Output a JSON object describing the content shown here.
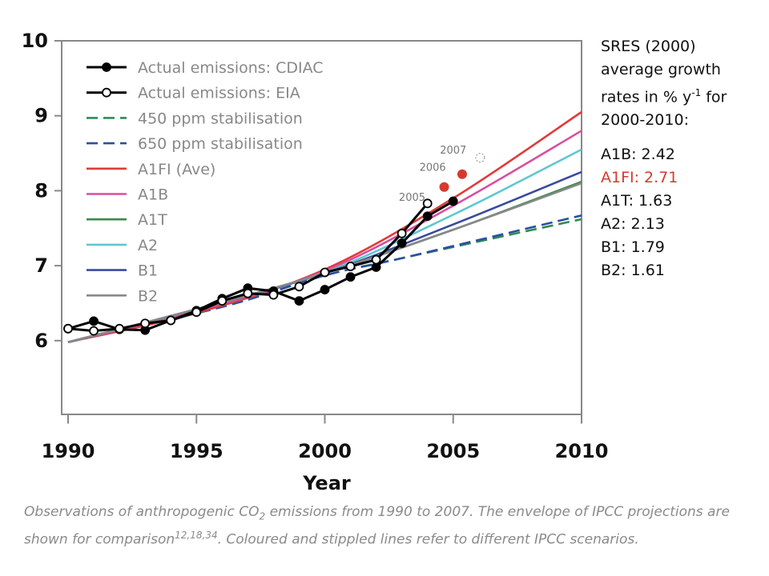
{
  "chart_data": {
    "type": "line",
    "xlabel": "Year",
    "ylabel": "",
    "xlim": [
      1990,
      2010
    ],
    "ylim": [
      5,
      10
    ],
    "x_ticks": [
      1990,
      1995,
      2000,
      2005,
      2010
    ],
    "y_ticks": [
      6,
      7,
      8,
      9,
      10
    ],
    "legend_position": "top-left",
    "series": [
      {
        "name": "Actual emissions: CDIAC",
        "color": "#000000",
        "style": "solid-filled-markers",
        "x": [
          1990,
          1991,
          1992,
          1993,
          1994,
          1995,
          1996,
          1997,
          1998,
          1999,
          2000,
          2001,
          2002,
          2003,
          2004,
          2005
        ],
        "y": [
          6.16,
          6.26,
          6.15,
          6.14,
          6.27,
          6.4,
          6.56,
          6.7,
          6.66,
          6.53,
          6.68,
          6.85,
          6.98,
          7.3,
          7.66,
          7.86
        ]
      },
      {
        "name": "Actual emissions: EIA",
        "color": "#000000",
        "style": "solid-open-markers",
        "x": [
          1990,
          1991,
          1992,
          1993,
          1994,
          1995,
          1996,
          1997,
          1998,
          1999,
          2000,
          2001,
          2002,
          2003,
          2004
        ],
        "y": [
          6.16,
          6.13,
          6.16,
          6.23,
          6.27,
          6.38,
          6.53,
          6.63,
          6.61,
          6.72,
          6.91,
          6.99,
          7.08,
          7.43,
          7.83
        ]
      },
      {
        "name": "450 ppm stabilisation",
        "color": "#2e8b57",
        "style": "dashed",
        "x": [
          1990,
          1996,
          2000,
          2003,
          2010
        ],
        "y": [
          5.98,
          6.45,
          6.87,
          7.1,
          7.62
        ]
      },
      {
        "name": "650 ppm stabilisation",
        "color": "#2a4fa0",
        "style": "dashed",
        "x": [
          1990,
          1996,
          2000,
          2003,
          2010
        ],
        "y": [
          5.98,
          6.45,
          6.87,
          7.1,
          7.67
        ]
      },
      {
        "name": "A1FI (Ave)",
        "color": "#e03a3a",
        "style": "solid",
        "x": [
          1990,
          1995,
          2000,
          2005,
          2010
        ],
        "y": [
          5.98,
          6.37,
          6.95,
          7.9,
          9.05
        ]
      },
      {
        "name": "A1B",
        "color": "#d84f9e",
        "style": "solid",
        "x": [
          1990,
          1995,
          2000,
          2005,
          2010
        ],
        "y": [
          5.98,
          6.4,
          6.93,
          7.8,
          8.8
        ]
      },
      {
        "name": "A1T",
        "color": "#3a8a4a",
        "style": "solid",
        "x": [
          1990,
          1995,
          2000,
          2005,
          2010
        ],
        "y": [
          5.98,
          6.42,
          6.9,
          7.48,
          8.12
        ]
      },
      {
        "name": "A2",
        "color": "#5cc8d0",
        "style": "solid",
        "x": [
          1990,
          1995,
          2000,
          2005,
          2010
        ],
        "y": [
          5.98,
          6.42,
          6.91,
          7.68,
          8.55
        ]
      },
      {
        "name": "B1",
        "color": "#3a4a9e",
        "style": "solid",
        "x": [
          1990,
          1995,
          2000,
          2005,
          2010
        ],
        "y": [
          5.98,
          6.42,
          6.9,
          7.55,
          8.25
        ]
      },
      {
        "name": "B2",
        "color": "#888888",
        "style": "solid",
        "x": [
          1990,
          1995,
          2000,
          2005,
          2010
        ],
        "y": [
          5.98,
          6.42,
          6.9,
          7.48,
          8.1
        ]
      }
    ],
    "annotations": [
      {
        "label": "2005",
        "x": 2004.0,
        "y": 7.83,
        "marker": "none",
        "color": "#000000"
      },
      {
        "label": "2006",
        "x": 2004.65,
        "y": 8.05,
        "marker": "filled",
        "color": "#d63a2e"
      },
      {
        "label": "2007",
        "x": 2005.35,
        "y": 8.22,
        "marker": "filled",
        "color": "#d63a2e"
      },
      {
        "label": "",
        "x": 2006.05,
        "y": 8.44,
        "marker": "dotted-open",
        "color": "#999999"
      }
    ]
  },
  "side_panel": {
    "heading_line1": "SRES (2000)",
    "heading_line2": "average growth",
    "heading_line3_pre": "rates in % y",
    "heading_line3_sup": "-1",
    "heading_line3_post": " for",
    "heading_line4": "2000-2010:",
    "rates": [
      {
        "label": "A1B: 2.42",
        "highlight": false
      },
      {
        "label": "A1FI: 2.71",
        "highlight": true
      },
      {
        "label": "A1T: 1.63",
        "highlight": false
      },
      {
        "label": "A2: 2.13",
        "highlight": false
      },
      {
        "label": "B1: 1.79",
        "highlight": false
      },
      {
        "label": "B2: 1.61",
        "highlight": false
      }
    ],
    "highlight_color": "#d63a2e"
  },
  "caption": {
    "part1": "Observations of anthropogenic CO",
    "part1_sub": "2",
    "part2": " emissions from 1990 to 2007. The envelope of IPCC projections are shown for comparison",
    "part2_sup": "12,18,34",
    "part3": ". Coloured and stippled lines refer to different IPCC scenarios."
  }
}
